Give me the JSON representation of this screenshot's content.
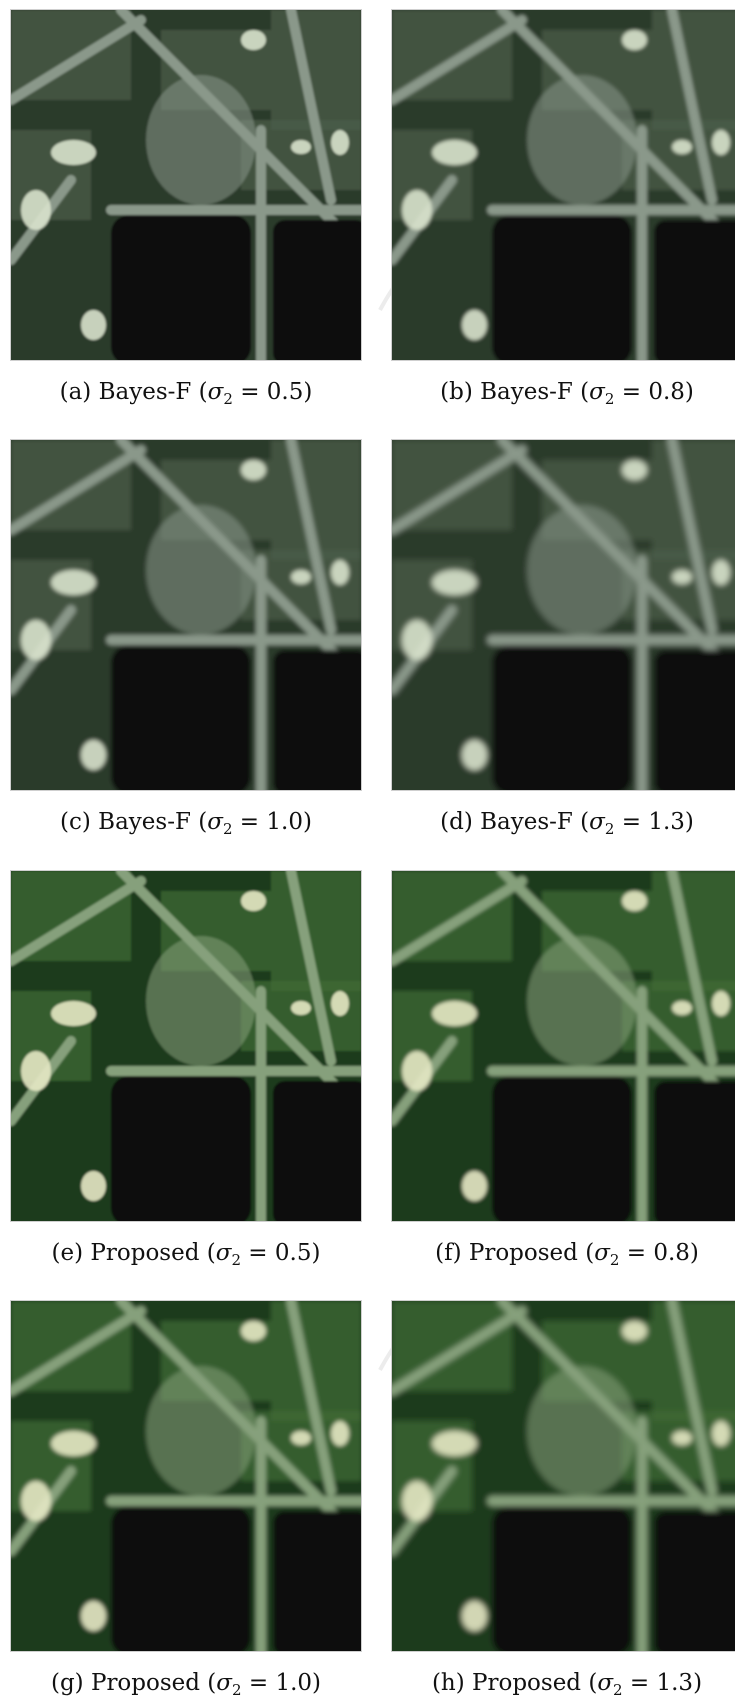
{
  "figure": {
    "panels": [
      {
        "caption": "(a)  Bayes-F (",
        "sigma_value": "0.5",
        "method": "bayes",
        "blur": 0.5
      },
      {
        "caption": "(b)  Bayes-F (",
        "sigma_value": "0.8",
        "method": "bayes",
        "blur": 0.8
      },
      {
        "caption": "(c)  Bayes-F (",
        "sigma_value": "1.0",
        "method": "bayes",
        "blur": 1.0
      },
      {
        "caption": "(d)  Bayes-F (",
        "sigma_value": "1.3",
        "method": "bayes",
        "blur": 1.3
      },
      {
        "caption": "(e)  Proposed (",
        "sigma_value": "0.5",
        "method": "proposed",
        "blur": 0.5
      },
      {
        "caption": "(f)  Proposed (",
        "sigma_value": "0.8",
        "method": "proposed",
        "blur": 0.8
      },
      {
        "caption": "(g)  Proposed (",
        "sigma_value": "1.0",
        "method": "proposed",
        "blur": 1.0
      },
      {
        "caption": "(h)  Proposed (",
        "sigma_value": "1.3",
        "method": "proposed",
        "blur": 1.3
      }
    ],
    "sigma_symbol": "σ",
    "sigma_subscript": "2",
    "equals": " = ",
    "close_paren": ")"
  },
  "colors": {
    "bayes_palette": {
      "field_dark": "#2c3a2c",
      "field_mid": "#4a5c48",
      "road": "#8a988a",
      "bright": "#d8e2cc",
      "water": "#0b0e0c"
    },
    "proposed_palette": {
      "field_dark": "#1f3a1e",
      "field_mid": "#3f6a34",
      "road": "#86a07c",
      "bright": "#e6e8c4",
      "water": "#070b08"
    },
    "watermark": "#e9e9e9"
  }
}
